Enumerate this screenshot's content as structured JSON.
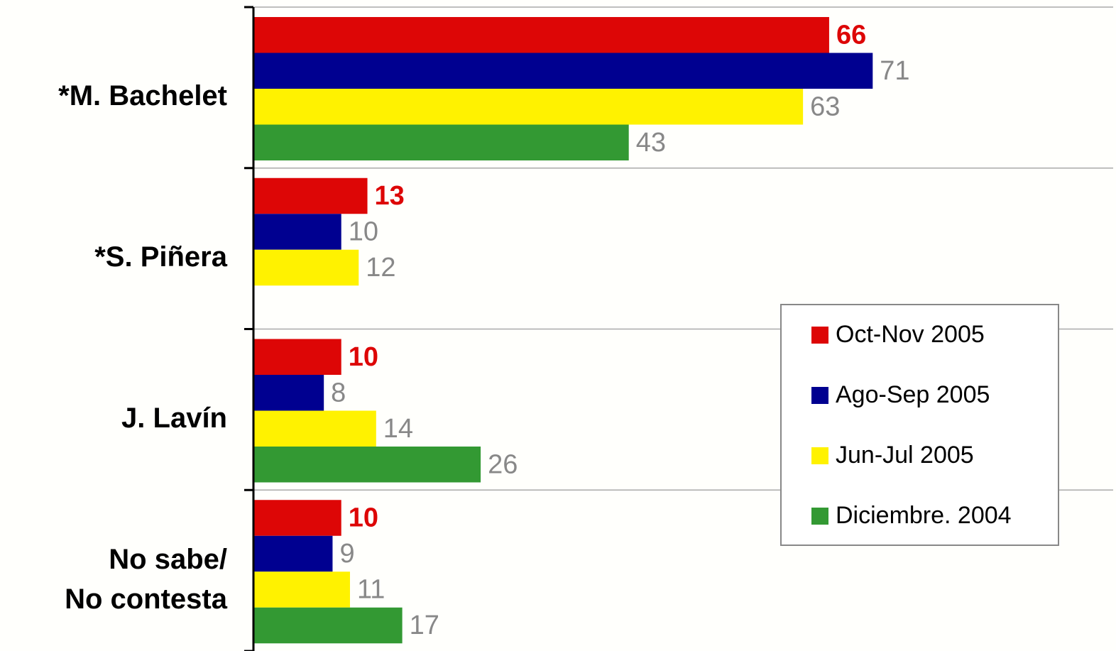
{
  "chart_data": {
    "type": "bar",
    "orientation": "horizontal",
    "categories": [
      "*M. Bachelet",
      "*S. Piñera",
      "J. Lavín",
      "No sabe/\nNo contesta"
    ],
    "series": [
      {
        "name": "Oct-Nov 2005",
        "color": "#dd0606",
        "values": [
          66,
          13,
          10,
          10
        ]
      },
      {
        "name": "Ago-Sep 2005",
        "color": "#000090",
        "values": [
          71,
          10,
          8,
          9
        ]
      },
      {
        "name": "Jun-Jul 2005",
        "color": "#fff200",
        "values": [
          63,
          12,
          14,
          11
        ]
      },
      {
        "name": "Diciembre. 2004",
        "color": "#339933",
        "values": [
          43,
          null,
          26,
          17
        ]
      }
    ],
    "xlim": [
      0,
      98.6
    ],
    "grid": true,
    "legend": "lower right"
  }
}
